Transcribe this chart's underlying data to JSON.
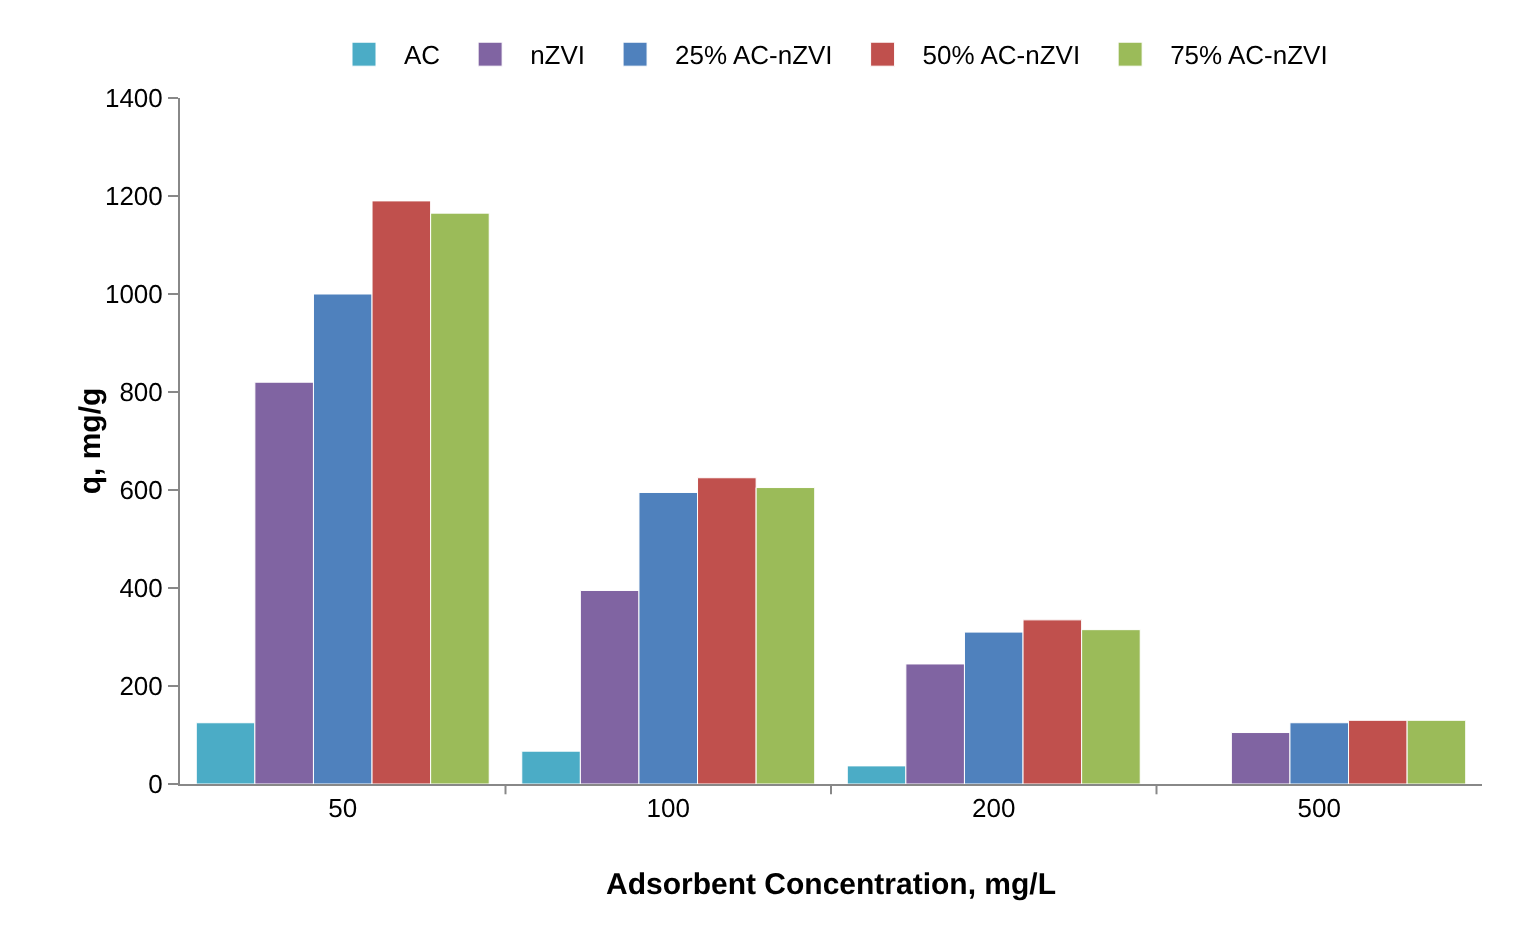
{
  "chart_data": {
    "type": "bar",
    "xlabel": "Adsorbent Concentration, mg/L",
    "ylabel": "q, mg/g",
    "categories": [
      "50",
      "100",
      "200",
      "500"
    ],
    "series": [
      {
        "name": "AC",
        "color": "#4bacc6",
        "values": [
          125,
          67,
          37,
          null
        ]
      },
      {
        "name": "nZVI",
        "color": "#8064a2",
        "values": [
          820,
          395,
          245,
          105
        ]
      },
      {
        "name": "25% AC-nZVI",
        "color": "#4f81bd",
        "values": [
          1000,
          595,
          310,
          125
        ]
      },
      {
        "name": "50% AC-nZVI",
        "color": "#c0504d",
        "values": [
          1190,
          625,
          335,
          130
        ]
      },
      {
        "name": "75% AC-nZVI",
        "color": "#9bbb59",
        "values": [
          1165,
          605,
          315,
          130
        ]
      }
    ],
    "ylim": [
      0,
      1400
    ],
    "yticks": [
      0,
      200,
      400,
      600,
      800,
      1000,
      1200,
      1400
    ],
    "grid": false,
    "legend": "top"
  }
}
